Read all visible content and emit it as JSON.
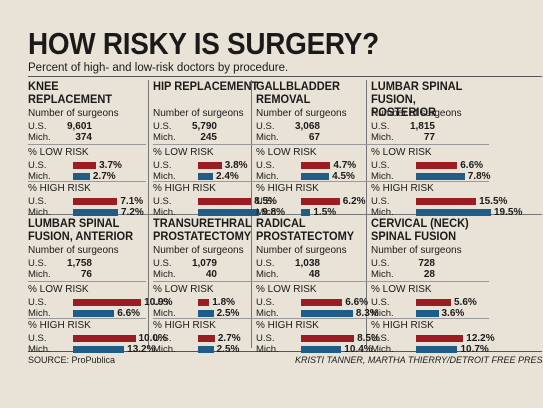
{
  "title": "HOW RISKY IS SURGERY?",
  "subtitle": "Percent of high- and low-risk doctors by procedure.",
  "source": "SOURCE: ProPublica",
  "credit": "KRISTI TANNER, MARTHA THIERRY/DETROIT FREE PRESS",
  "colors": {
    "us": "#9b1c22",
    "mich": "#1f5c87"
  },
  "labels": {
    "num_surgeons": "Number of surgeons",
    "low_risk": "% LOW RISK",
    "high_risk": "% HIGH RISK",
    "us": "U.S.",
    "mich": "Mich."
  },
  "chart_data": [
    {
      "type": "bar",
      "title": "KNEE REPLACEMENT",
      "surgeons": {
        "us": "9,601",
        "mich": "374"
      },
      "low_risk": {
        "us": 3.7,
        "mich": 2.7,
        "us_label": "3.7%",
        "mich_label": "2.7%"
      },
      "high_risk": {
        "us": 7.1,
        "mich": 7.2,
        "us_label": "7.1%",
        "mich_label": "7.2%"
      }
    },
    {
      "type": "bar",
      "title": "HIP REPLACEMENT",
      "surgeons": {
        "us": "5,790",
        "mich": "245"
      },
      "low_risk": {
        "us": 3.8,
        "mich": 2.4,
        "us_label": "3.8%",
        "mich_label": "2.4%"
      },
      "high_risk": {
        "us": 8.5,
        "mich": 9.8,
        "us_label": "8.5%",
        "mich_label": "9.8%"
      }
    },
    {
      "type": "bar",
      "title": "GALLBLADDER REMOVAL",
      "surgeons": {
        "us": "3,068",
        "mich": "67"
      },
      "low_risk": {
        "us": 4.7,
        "mich": 4.5,
        "us_label": "4.7%",
        "mich_label": "4.5%"
      },
      "high_risk": {
        "us": 6.2,
        "mich": 1.5,
        "us_label": "6.2%",
        "mich_label": "1.5%"
      }
    },
    {
      "type": "bar",
      "title": "LUMBAR SPINAL FUSION, POSTERIOR",
      "surgeons": {
        "us": "1,815",
        "mich": "77"
      },
      "low_risk": {
        "us": 6.6,
        "mich": 7.8,
        "us_label": "6.6%",
        "mich_label": "7.8%"
      },
      "high_risk": {
        "us": 15.5,
        "mich": 19.5,
        "us_label": "15.5%",
        "mich_label": "19.5%"
      }
    },
    {
      "type": "bar",
      "title": "LUMBAR SPINAL FUSION, ANTERIOR",
      "surgeons": {
        "us": "1,758",
        "mich": "76"
      },
      "low_risk": {
        "us": 10.9,
        "mich": 6.6,
        "us_label": "10.9%",
        "mich_label": "6.6%"
      },
      "high_risk": {
        "us": 10.0,
        "mich": 13.2,
        "us_label": "10.0%",
        "mich_label": "13.2%"
      }
    },
    {
      "type": "bar",
      "title": "TRANSURETHRAL PROSTATECTOMY",
      "surgeons": {
        "us": "1,079",
        "mich": "40"
      },
      "low_risk": {
        "us": 1.8,
        "mich": 2.5,
        "us_label": "1.8%",
        "mich_label": "2.5%"
      },
      "high_risk": {
        "us": 2.7,
        "mich": 2.5,
        "us_label": "2.7%",
        "mich_label": "2.5%"
      }
    },
    {
      "type": "bar",
      "title": "RADICAL PROSTATECTOMY",
      "surgeons": {
        "us": "1,038",
        "mich": "48"
      },
      "low_risk": {
        "us": 6.6,
        "mich": 8.3,
        "us_label": "6.6%",
        "mich_label": "8.3%"
      },
      "high_risk": {
        "us": 8.5,
        "mich": 10.4,
        "us_label": "8.5%",
        "mich_label": "10.4%"
      }
    },
    {
      "type": "bar",
      "title": "CERVICAL (NECK) SPINAL FUSION",
      "surgeons": {
        "us": "728",
        "mich": "28"
      },
      "low_risk": {
        "us": 5.6,
        "mich": 3.6,
        "us_label": "5.6%",
        "mich_label": "3.6%"
      },
      "high_risk": {
        "us": 12.2,
        "mich": 10.7,
        "us_label": "12.2%",
        "mich_label": "10.7%"
      }
    }
  ]
}
